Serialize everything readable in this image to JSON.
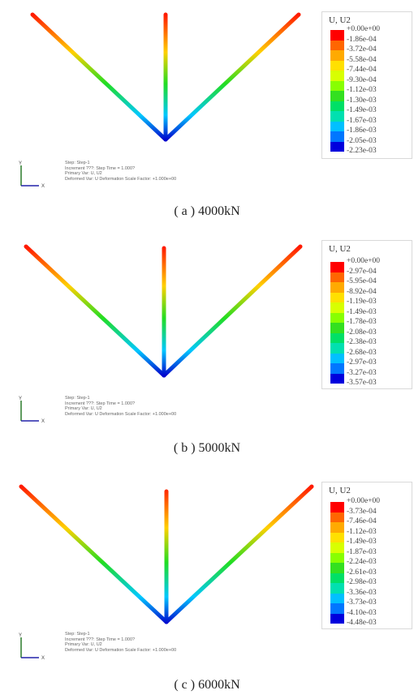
{
  "panels": [
    {
      "caption": "( a ) 4000kN",
      "legend_title": "U, U2",
      "legend_values": [
        "+0.00e+00",
        "-1.86e-04",
        "-3.72e-04",
        "-5.58e-04",
        "-7.44e-04",
        "-9.30e-04",
        "-1.12e-03",
        "-1.30e-03",
        "-1.49e-03",
        "-1.67e-03",
        "-1.86e-03",
        "-2.05e-03",
        "-2.23e-03"
      ],
      "info_lines": [
        "Step: Step-1",
        "Increment     ???: Step Time =    1.000?",
        "Primary Var: U, U2",
        "Deformed Var: U   Deformation Scale Factor: +1.000e+00"
      ]
    },
    {
      "caption": "( b ) 5000kN",
      "legend_title": "U, U2",
      "legend_values": [
        "+0.00e+00",
        "-2.97e-04",
        "-5.95e-04",
        "-8.92e-04",
        "-1.19e-03",
        "-1.49e-03",
        "-1.78e-03",
        "-2.08e-03",
        "-2.38e-03",
        "-2.68e-03",
        "-2.97e-03",
        "-3.27e-03",
        "-3.57e-03"
      ],
      "info_lines": [
        "Step: Step-1",
        "Increment     ???: Step Time =    1.000?",
        "Primary Var: U, U2",
        "Deformed Var: U   Deformation Scale Factor: +1.000e+00"
      ]
    },
    {
      "caption": "( c ) 6000kN",
      "legend_title": "U, U2",
      "legend_values": [
        "+0.00e+00",
        "-3.73e-04",
        "-7.46e-04",
        "-1.12e-03",
        "-1.49e-03",
        "-1.87e-03",
        "-2.24e-03",
        "-2.61e-03",
        "-2.98e-03",
        "-3.36e-03",
        "-3.73e-03",
        "-4.10e-03",
        "-4.48e-03"
      ],
      "info_lines": [
        "Step: Step-1",
        "Increment     ???: Step Time =    1.000?",
        "Primary Var: U, U2",
        "Deformed Var: U   Deformation Scale Factor: +1.000e+00"
      ]
    }
  ],
  "axis_labels": {
    "y": "Y",
    "x": "X"
  },
  "colors": {
    "legend_bands": [
      "#ff0000",
      "#ff6600",
      "#ffaa00",
      "#ffe000",
      "#d8ff00",
      "#88ff00",
      "#33e020",
      "#00e066",
      "#00e0b0",
      "#00c0ff",
      "#0077ff",
      "#0033ff",
      "#0000dd"
    ],
    "gradient_top": "#ff1a00",
    "gradient_mid_1": "#ffd000",
    "gradient_mid_2": "#22dd22",
    "gradient_mid_3": "#00c8ff",
    "gradient_bottom": "#0000cc"
  }
}
